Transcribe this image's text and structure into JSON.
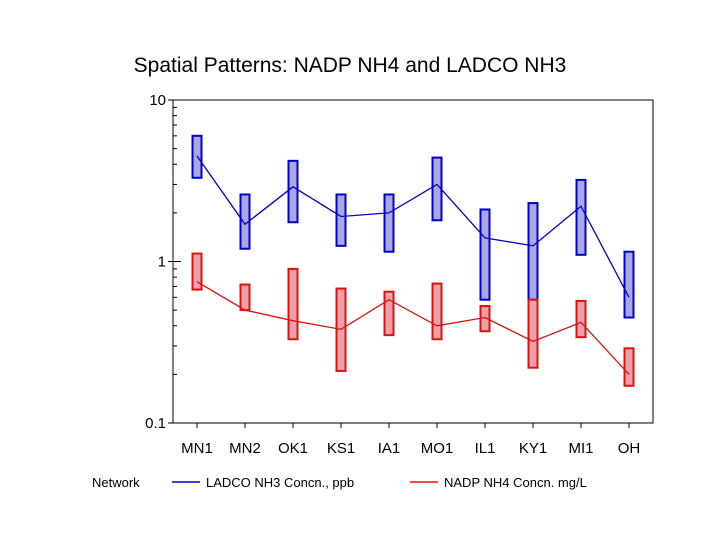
{
  "chart_data": {
    "type": "line",
    "title": "Spatial Patterns: NADP NH4 and LADCO NH3",
    "y_scale": "log",
    "ylim": [
      0.1,
      10
    ],
    "y_ticks": [
      {
        "value": 10,
        "label": "10"
      },
      {
        "value": 1,
        "label": "1"
      },
      {
        "value": 0.1,
        "label": "0.1"
      }
    ],
    "categories": [
      "MN1",
      "MN2",
      "OK1",
      "KS1",
      "IA1",
      "MO1",
      "IL1",
      "KY1",
      "MI1",
      "OH"
    ],
    "legend_title": "Network",
    "series": [
      {
        "name": "LADCO NH3 Concn., ppb",
        "line_color": "#0000cc",
        "box_fill": "#a8a8e6",
        "box_stroke": "#0000cc",
        "values": [
          4.5,
          1.7,
          2.9,
          1.9,
          2.0,
          3.0,
          1.4,
          1.25,
          2.2,
          0.6
        ],
        "ranges": [
          [
            3.3,
            6.0
          ],
          [
            1.2,
            2.6
          ],
          [
            1.75,
            4.2
          ],
          [
            1.25,
            2.6
          ],
          [
            1.15,
            2.6
          ],
          [
            1.8,
            4.4
          ],
          [
            0.58,
            2.1
          ],
          [
            0.58,
            2.3
          ],
          [
            1.1,
            3.2
          ],
          [
            0.45,
            1.15
          ]
        ]
      },
      {
        "name": "NADP NH4 Concn. mg/L",
        "line_color": "#dd1111",
        "box_fill": "#f0a0a8",
        "box_stroke": "#dd1111",
        "values": [
          0.75,
          0.5,
          0.43,
          0.38,
          0.58,
          0.4,
          0.45,
          0.32,
          0.42,
          0.2
        ],
        "ranges": [
          [
            0.67,
            1.12
          ],
          [
            0.5,
            0.72
          ],
          [
            0.33,
            0.9
          ],
          [
            0.21,
            0.68
          ],
          [
            0.35,
            0.65
          ],
          [
            0.33,
            0.73
          ],
          [
            0.37,
            0.53
          ],
          [
            0.22,
            0.58
          ],
          [
            0.34,
            0.57
          ],
          [
            0.17,
            0.29
          ]
        ]
      }
    ]
  }
}
